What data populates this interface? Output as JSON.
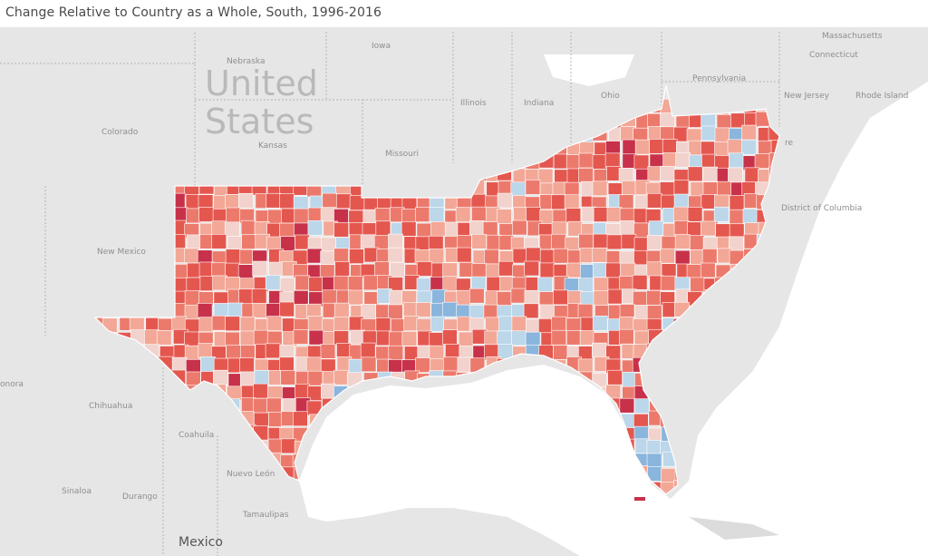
{
  "title": "Change Relative to Country as a Whole, South, 1996-2016",
  "colors": {
    "land": "#e6e6e6",
    "water": "#ffffff",
    "border": "#ffffff",
    "stateLine": "#b0b0b0",
    "red_dark": "#c8314a",
    "red": "#e4574f",
    "red_mid": "#ec7a6c",
    "red_light": "#f3a796",
    "pink": "#f2d2cc",
    "blue_light": "#bcd6ea",
    "blue": "#8ab5dc"
  },
  "labels": {
    "country": [
      "United",
      "States"
    ],
    "mexico": "Mexico",
    "states": {
      "iowa": "Iowa",
      "nebraska": "Nebraska",
      "colorado": "Colorado",
      "kansas": "Kansas",
      "missouri": "Missouri",
      "illinois": "Illinois",
      "indiana": "Indiana",
      "ohio": "Ohio",
      "pennsylvania": "Pennsylvania",
      "new_jersey": "New Jersey",
      "massachusetts": "Massachusetts",
      "connecticut": "Connecticut",
      "rhode_island": "Rhode Island",
      "district_of_columbia": "District of Columbia",
      "new_mexico": "New Mexico",
      "sonora": "onora",
      "chihuahua": "Chihuahua",
      "coahuila": "Coahuila",
      "nuevo_leon": "Nuevo León",
      "sinaloa": "Sinaloa",
      "durango": "Durango",
      "tamaulipas": "Tamaulipas",
      "delaware": "re"
    }
  }
}
